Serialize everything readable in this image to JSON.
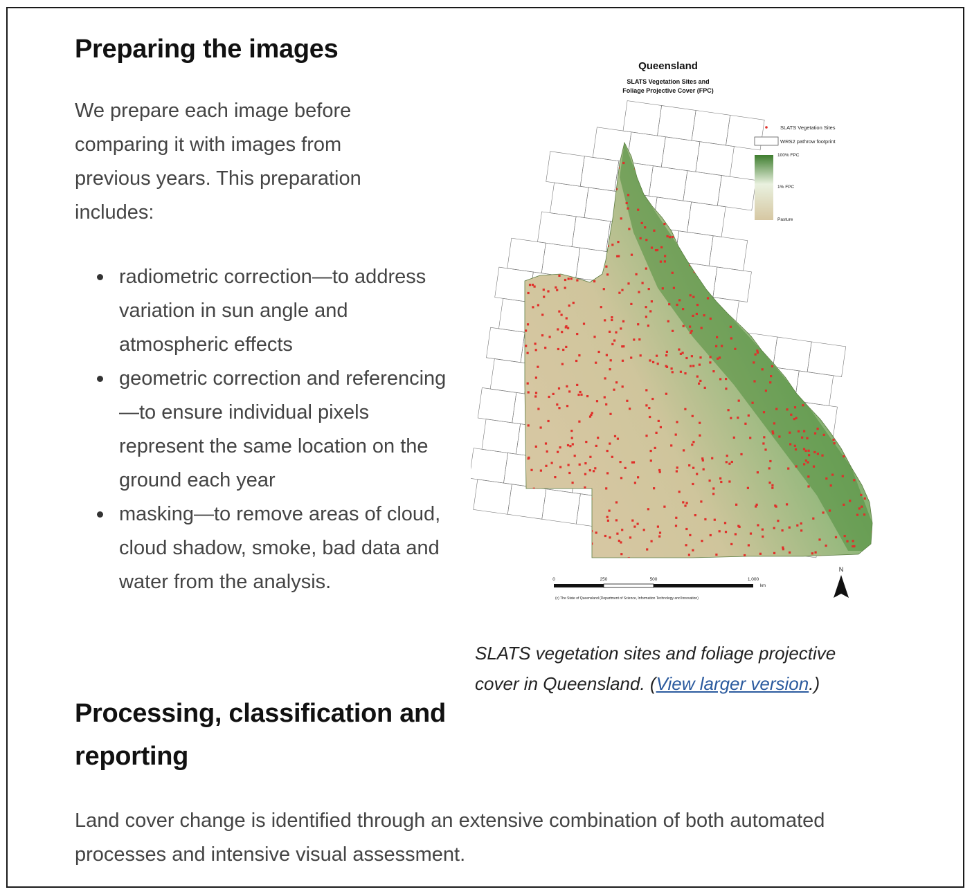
{
  "section1": {
    "heading": "Preparing the images",
    "intro": "We prepare each image before comparing it with images from previous years. This preparation includes:",
    "bullets": [
      "radiometric correction—to address variation in sun angle and atmospheric effects",
      "geometric correction and referencing—to ensure individual pixels represent the same location on the ground each year",
      "masking—to remove areas of cloud, cloud shadow, smoke, bad data and water from the analysis."
    ]
  },
  "figure": {
    "map_title": "Queensland",
    "map_subtitle_1": "SLATS Vegetation Sites and",
    "map_subtitle_2": "Foliage Projective Cover (FPC)",
    "legend": {
      "sites": "SLATS Vegetation Sites",
      "footprint": "WRS2 pathrow footprint",
      "fpc_high": "100% FPC",
      "fpc_mid": "1% FPC",
      "fpc_low": "Pasture"
    },
    "scale_ticks": [
      "0",
      "250",
      "500",
      "1,000"
    ],
    "scale_unit": "km",
    "copyright": "(c) The State of Queensland (Department of Science, Information Technology and Innovation)",
    "north_label": "N",
    "colors": {
      "site": "#e0302a",
      "fpc_high": "#3e7d2e",
      "fpc_mid": "#e9f1df",
      "fpc_low": "#d6c7a2"
    },
    "caption_text": "SLATS vegetation sites and foliage projective cover in Queensland. (",
    "caption_link": "View larger version",
    "caption_end": ".)"
  },
  "section2": {
    "heading": "Processing, classification and reporting",
    "body": "Land cover change is identified through an extensive combination of both automated processes and intensive visual assessment."
  }
}
